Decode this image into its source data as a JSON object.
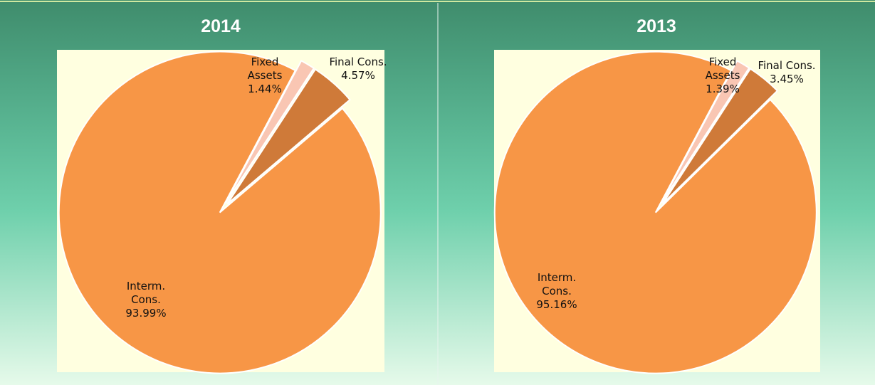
{
  "chart_data": [
    {
      "type": "pie",
      "title": "2014",
      "categories": [
        "Fixed Assets",
        "Final Cons.",
        "Interm. Cons."
      ],
      "values": [
        1.44,
        4.57,
        93.99
      ],
      "value_labels": [
        "1.44%",
        "4.57%",
        "93.99%"
      ],
      "colors": [
        "#f9c6b3",
        "#cf7a39",
        "#f79646"
      ]
    },
    {
      "type": "pie",
      "title": "2013",
      "categories": [
        "Fixed Assets",
        "Final Cons.",
        "Interm. Cons."
      ],
      "values": [
        1.39,
        3.45,
        95.16
      ],
      "value_labels": [
        "1.39%",
        "3.45%",
        "95.16%"
      ],
      "colors": [
        "#f9c6b3",
        "#cf7a39",
        "#f79646"
      ]
    }
  ]
}
